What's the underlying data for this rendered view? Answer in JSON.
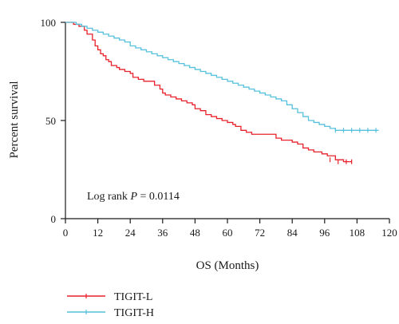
{
  "chart_data": {
    "type": "line",
    "subtype": "kaplan-meier",
    "xlabel": "OS (Months)",
    "ylabel": "Percent survival",
    "xlim": [
      0,
      120
    ],
    "ylim": [
      0,
      100
    ],
    "xticks": [
      "0",
      "12",
      "24",
      "36",
      "48",
      "60",
      "72",
      "84",
      "96",
      "108",
      "120"
    ],
    "yticks": [
      "0",
      "50",
      "100"
    ],
    "grid": false,
    "legend_position": "bottom-left",
    "annotation": {
      "prefix": "Log rank ",
      "stat": "P",
      "suffix": " = 0.0114"
    },
    "series": [
      {
        "name": "TIGIT-L",
        "color": "#e8212b",
        "x": [
          0,
          3,
          5,
          7,
          8,
          10,
          11,
          12,
          13,
          14,
          15,
          16,
          17,
          19,
          20,
          22,
          24,
          25,
          27,
          29,
          31,
          33,
          35,
          36,
          37,
          39,
          41,
          43,
          45,
          47,
          48,
          50,
          52,
          54,
          56,
          58,
          60,
          62,
          63,
          65,
          67,
          69,
          72,
          75,
          78,
          80,
          84,
          86,
          88,
          90,
          92,
          95,
          97,
          100,
          103,
          106
        ],
        "y": [
          100,
          99,
          98,
          96,
          94,
          91,
          88,
          86,
          84,
          83,
          81,
          80,
          78,
          77,
          76,
          75,
          74,
          72,
          71,
          70,
          70,
          68,
          66,
          64,
          63,
          62,
          61,
          60,
          59,
          58,
          56,
          55,
          53,
          52,
          51,
          50,
          49,
          48,
          47,
          45,
          44,
          43,
          43,
          43,
          41,
          40,
          39,
          38,
          36,
          35,
          34,
          33,
          32,
          30,
          29,
          29
        ],
        "censor_x": [
          98,
          101,
          104,
          106
        ],
        "censor_y": [
          30,
          29,
          29,
          29
        ]
      },
      {
        "name": "TIGIT-H",
        "color": "#56c1dc",
        "x": [
          0,
          4,
          6,
          8,
          10,
          12,
          14,
          16,
          18,
          20,
          22,
          24,
          26,
          28,
          30,
          32,
          34,
          36,
          38,
          40,
          42,
          44,
          46,
          48,
          50,
          52,
          54,
          56,
          58,
          60,
          62,
          64,
          66,
          68,
          70,
          72,
          74,
          76,
          78,
          80,
          82,
          84,
          86,
          88,
          90,
          92,
          94,
          96,
          98,
          100,
          104,
          108,
          112,
          116
        ],
        "y": [
          100,
          99,
          98,
          97,
          96,
          95,
          94,
          93,
          92,
          91,
          90,
          88,
          87,
          86,
          85,
          84,
          83,
          82,
          81,
          80,
          79,
          78,
          77,
          76,
          75,
          74,
          73,
          72,
          71,
          70,
          69,
          68,
          67,
          66,
          65,
          64,
          63,
          62,
          61,
          60,
          58,
          56,
          54,
          52,
          50,
          49,
          48,
          47,
          46,
          45,
          45,
          45,
          45,
          45
        ],
        "censor_x": [
          100,
          103,
          106,
          109,
          112,
          115
        ],
        "censor_y": [
          45,
          45,
          45,
          45,
          45,
          45
        ]
      }
    ]
  }
}
